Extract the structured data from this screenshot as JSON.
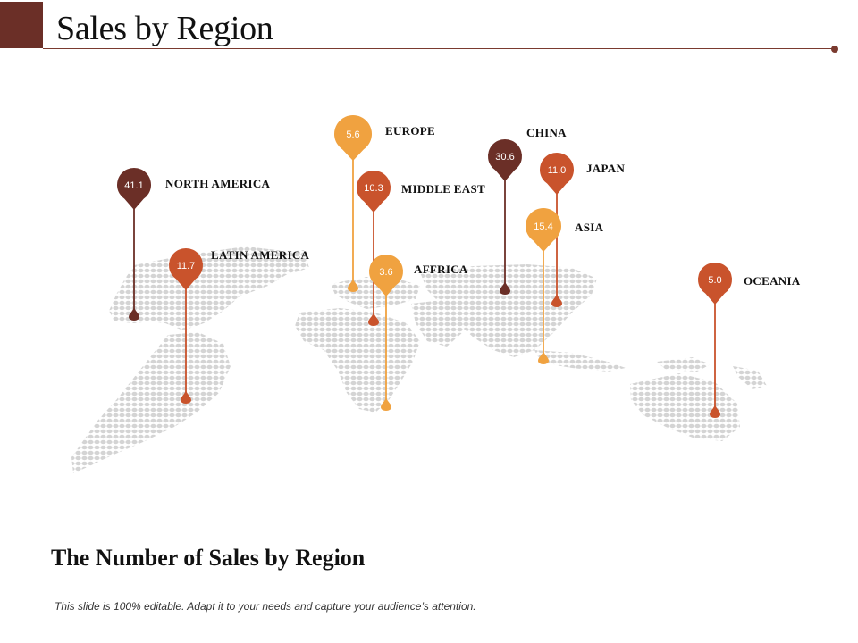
{
  "slide": {
    "title": "Sales by Region",
    "subtitle": "The Number of Sales by Region",
    "footnote": "This slide is 100% editable. Adapt it to your needs and capture your audience’s attention."
  },
  "colors": {
    "dark_brown": "#6b2f27",
    "rust": "#c9532c",
    "orange": "#f0a240",
    "map_dots": "#d4d4d4"
  },
  "regions": [
    {
      "name": "NORTH AMERICA",
      "value": "41.1",
      "color": "dark_brown"
    },
    {
      "name": "LATIN AMERICA",
      "value": "11.7",
      "color": "rust"
    },
    {
      "name": "EUROPE",
      "value": "5.6",
      "color": "orange"
    },
    {
      "name": "MIDDLE EAST",
      "value": "10.3",
      "color": "rust"
    },
    {
      "name": "AFFRICA",
      "value": "3.6",
      "color": "orange"
    },
    {
      "name": "CHINA",
      "value": "30.6",
      "color": "dark_brown"
    },
    {
      "name": "JAPAN",
      "value": "11.0",
      "color": "rust"
    },
    {
      "name": "ASIA",
      "value": "15.4",
      "color": "orange"
    },
    {
      "name": "OCEANIA",
      "value": "5.0",
      "color": "rust"
    }
  ]
}
